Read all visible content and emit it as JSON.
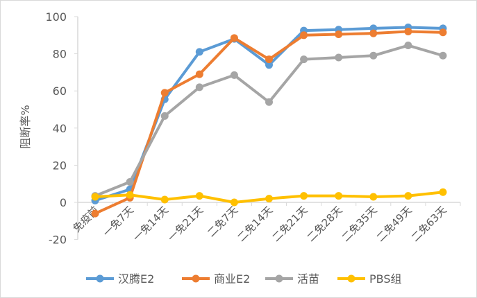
{
  "chart_data": {
    "type": "line",
    "title": "",
    "xlabel": "",
    "ylabel": "阻断率%",
    "ylim": [
      -20,
      100
    ],
    "yticks": [
      -20,
      0,
      20,
      40,
      60,
      80,
      100
    ],
    "grid": false,
    "legend_position": "bottom",
    "categories": [
      "免疫前",
      "一免7天",
      "一免14天",
      "一免21天",
      "二免7天",
      "二免14天",
      "二免21天",
      "二免28天",
      "二免35天",
      "二免49天",
      "二免63天"
    ],
    "series": [
      {
        "name": "汉腾E2",
        "color": "#5B9BD5",
        "values": [
          1,
          7,
          55.5,
          81,
          88,
          74,
          92.5,
          93,
          93.7,
          94.2,
          93.7
        ]
      },
      {
        "name": "商业E2",
        "color": "#ED7D31",
        "values": [
          -6,
          2.5,
          59,
          69,
          88.5,
          77,
          90,
          90.5,
          91,
          92,
          91.5
        ]
      },
      {
        "name": "活苗",
        "color": "#A5A5A5",
        "values": [
          3.5,
          11,
          46.5,
          62,
          68.5,
          54,
          77,
          78,
          79,
          84.5,
          79
        ]
      },
      {
        "name": "PBS组",
        "color": "#FFC000",
        "values": [
          3,
          4,
          1.5,
          3.5,
          0,
          2,
          3.5,
          3.5,
          3,
          3.5,
          5.5
        ]
      }
    ]
  }
}
